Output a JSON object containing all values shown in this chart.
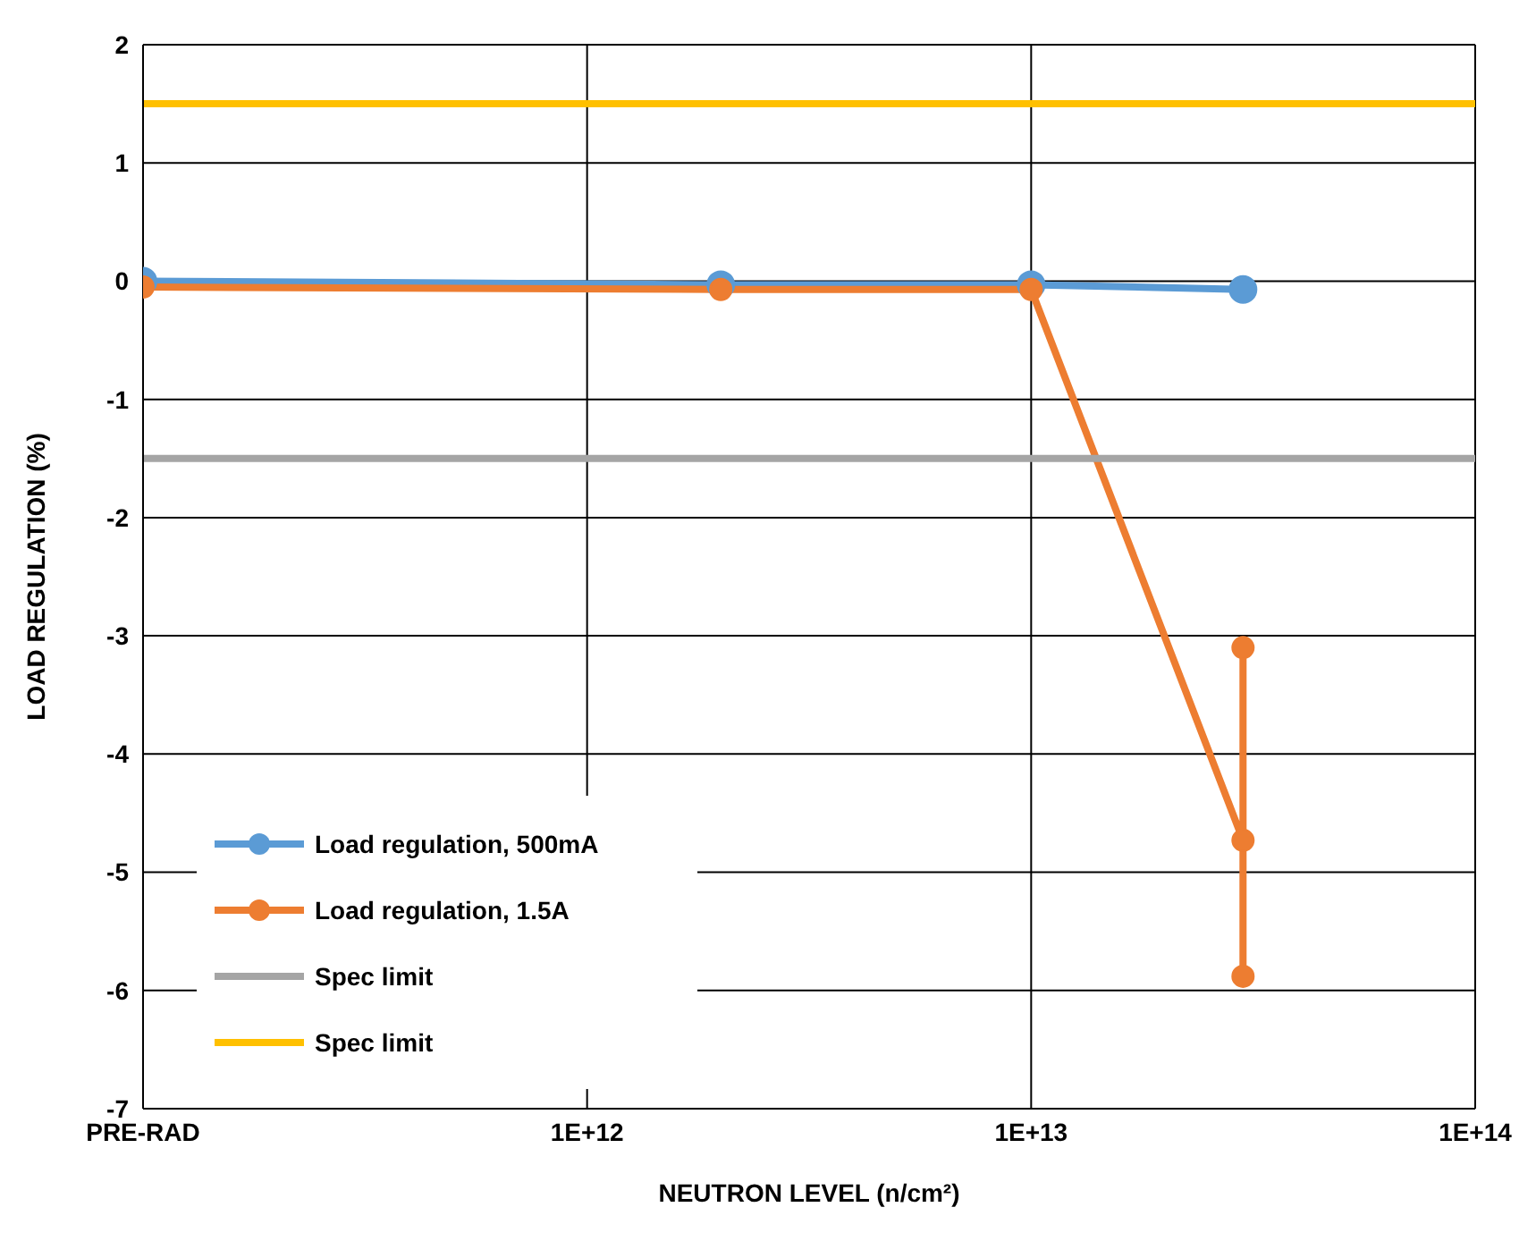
{
  "chart_data": {
    "type": "line",
    "xlabel": "NEUTRON LEVEL (n/cm²)",
    "ylabel": "LOAD REGULATION (%)",
    "log": "x",
    "xlim": [
      100000000000,
      100000000000000
    ],
    "xticks": [
      {
        "value": 100000000000,
        "label": "PRE-RAD"
      },
      {
        "value": 1000000000000,
        "label": "1E+12"
      },
      {
        "value": 10000000000000,
        "label": "1E+13"
      },
      {
        "value": 100000000000000,
        "label": "1E+14"
      }
    ],
    "ylim": [
      -7,
      2
    ],
    "yticks": [
      -7,
      -6,
      -5,
      -4,
      -3,
      -2,
      -1,
      0,
      1,
      2
    ],
    "grid": true,
    "legend": "bottom left",
    "marker": "circle",
    "line_style": "solid",
    "series": [
      {
        "name": "Load regulation, 500mA",
        "color": "#5b9bd5",
        "x": [
          100000000000,
          2000000000000,
          10000000000000,
          30000000000000
        ],
        "values": [
          0.0,
          -0.03,
          -0.03,
          -0.07
        ]
      },
      {
        "name": "Load regulation, 1.5A",
        "color": "#ed7d31",
        "x": [
          100000000000,
          2000000000000,
          10000000000000,
          30000000000000,
          30000000000000,
          30000000000000
        ],
        "values": [
          -0.05,
          -0.07,
          -0.07,
          -4.73,
          -3.1,
          -5.88
        ]
      },
      {
        "name": "Spec limit",
        "color": "#a5a5a5",
        "marker": "none",
        "x": [
          100000000000,
          100000000000000
        ],
        "values": [
          -1.5,
          -1.5
        ]
      },
      {
        "name": "Spec limit",
        "color": "#ffc000",
        "marker": "none",
        "x": [
          100000000000,
          100000000000000
        ],
        "values": [
          1.5,
          1.5
        ]
      }
    ]
  }
}
